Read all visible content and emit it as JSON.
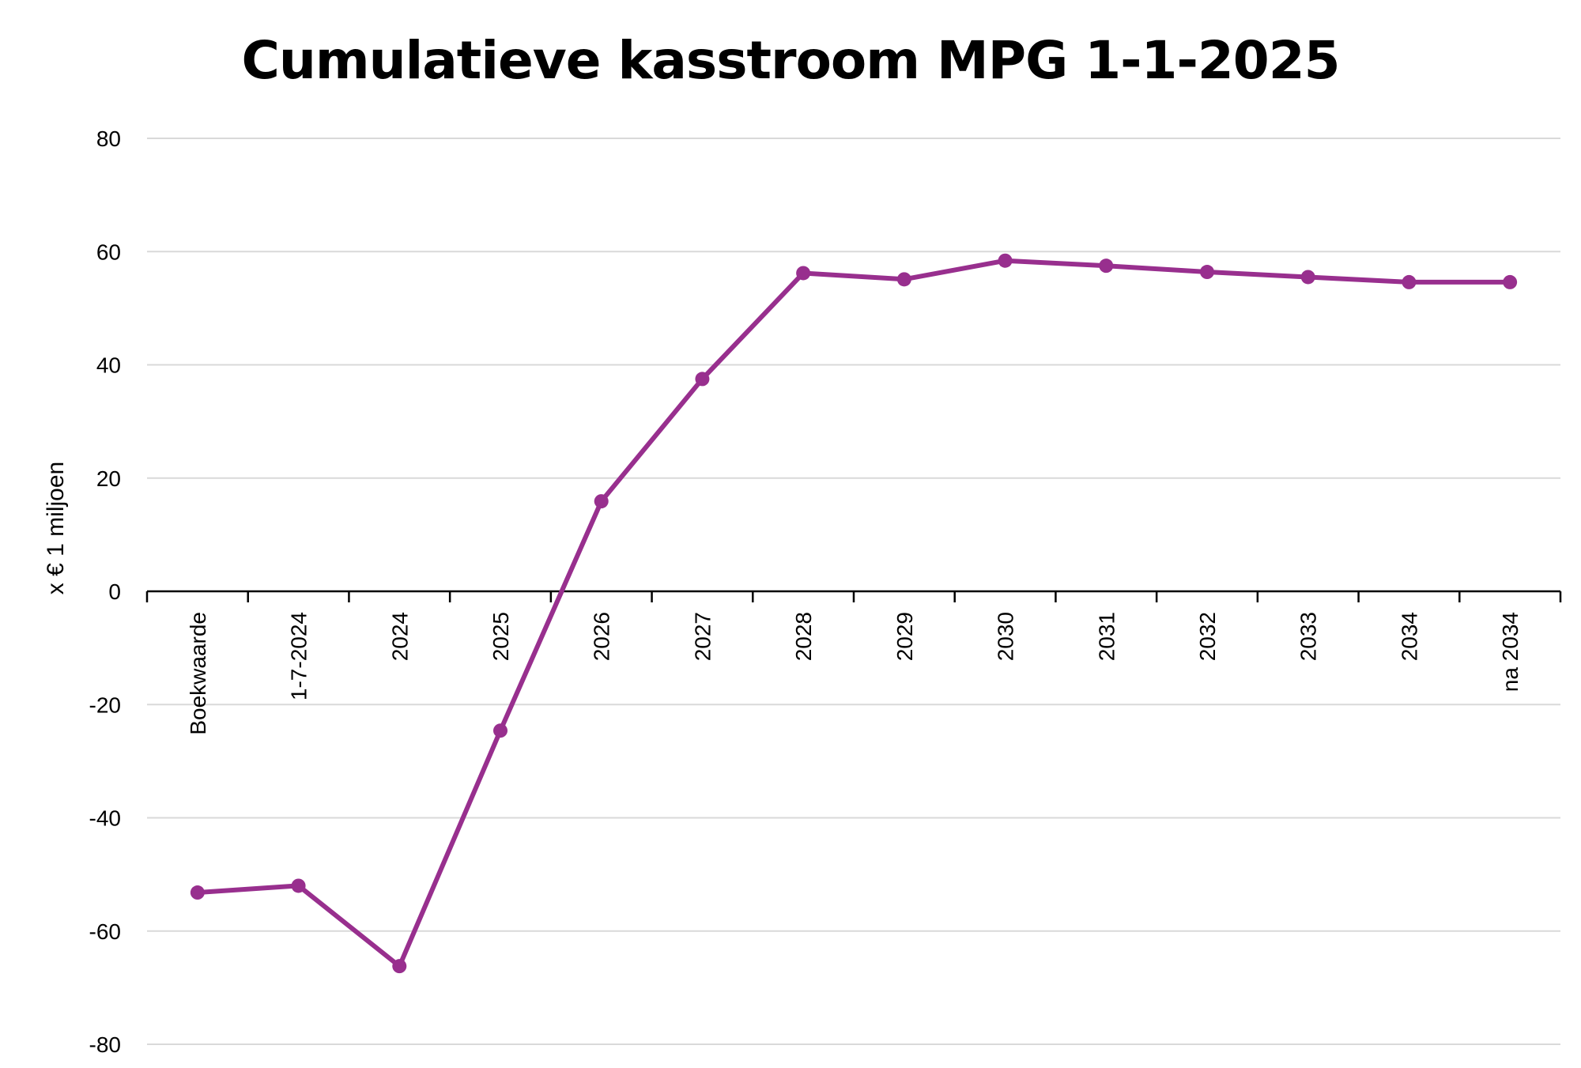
{
  "chart_data": {
    "type": "line",
    "title": "Cumulatieve kasstroom MPG 1-1-2025",
    "ylabel": "x € 1 miljoen",
    "xlabel": "",
    "ylim": [
      -80,
      80
    ],
    "yticks": [
      80,
      60,
      40,
      20,
      0,
      -20,
      -40,
      -60,
      -80
    ],
    "categories": [
      "Boekwaarde",
      "1-7-2024",
      "2024",
      "2025",
      "2026",
      "2027",
      "2028",
      "2029",
      "2030",
      "2031",
      "2032",
      "2033",
      "2034",
      "na 2034"
    ],
    "series": [
      {
        "values": [
          -53.2,
          -52.0,
          -66.2,
          -24.6,
          15.9,
          37.5,
          56.2,
          55.1,
          58.4,
          57.5,
          56.4,
          55.5,
          54.6,
          54.6
        ],
        "color": "#982f8e"
      }
    ],
    "grid": true,
    "legend": "none",
    "colors": {
      "gridline": "#d9d9d9",
      "axis": "#000000"
    }
  }
}
